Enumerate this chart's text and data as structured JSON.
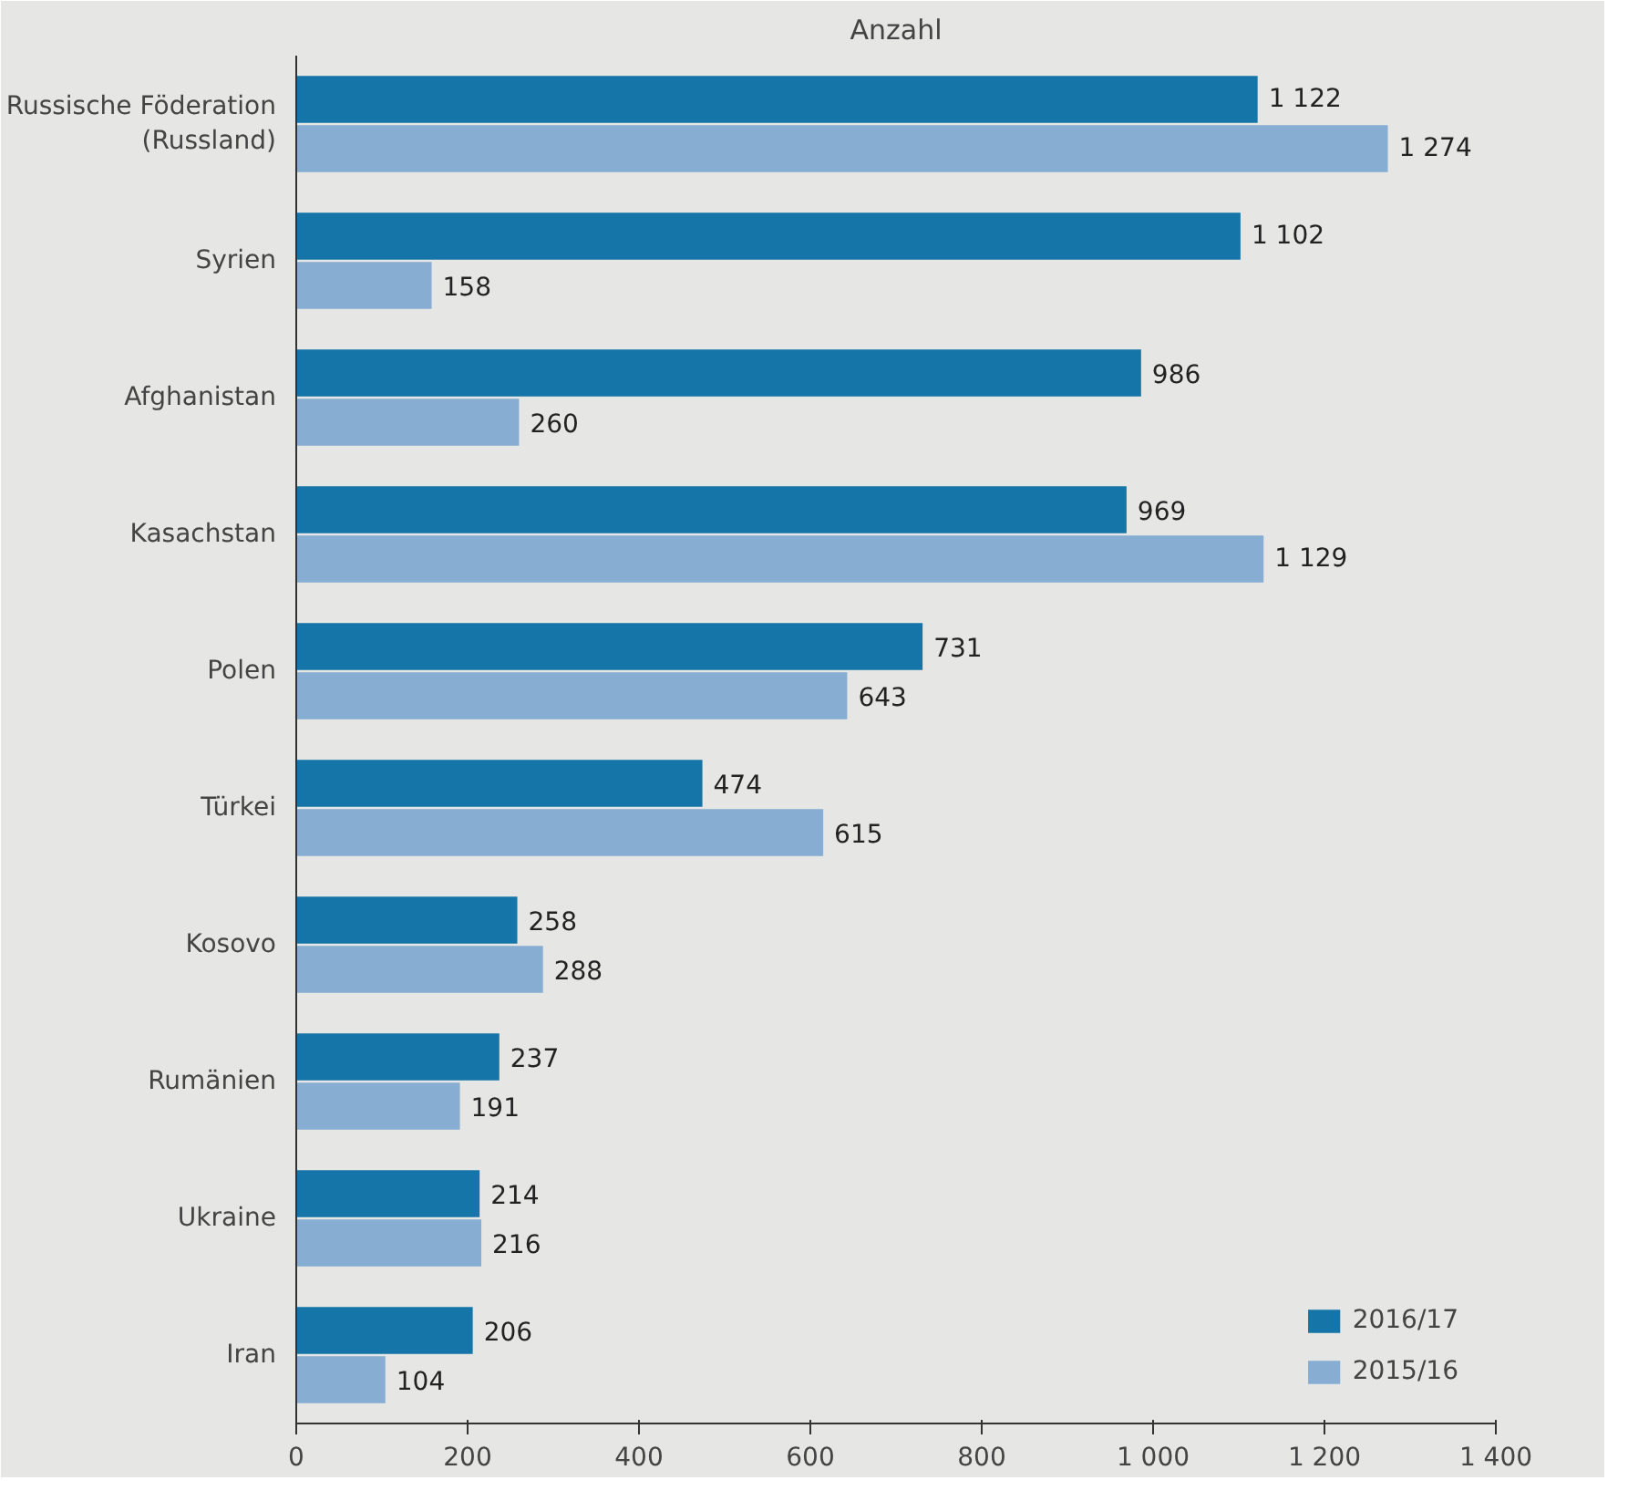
{
  "chart_data": {
    "type": "bar",
    "orientation": "horizontal",
    "title": "Anzahl",
    "categories": [
      "Russische Föderation\n(Russland)",
      "Syrien",
      "Afghanistan",
      "Kasachstan",
      "Polen",
      "Türkei",
      "Kosovo",
      "Rumänien",
      "Ukraine",
      "Iran"
    ],
    "series": [
      {
        "name": "2016/17",
        "color": "#1675a8",
        "values": [
          1122,
          1102,
          986,
          969,
          731,
          474,
          258,
          237,
          214,
          206
        ],
        "value_labels": [
          "1 122",
          "1 102",
          "986",
          "969",
          "731",
          "474",
          "258",
          "237",
          "214",
          "206"
        ]
      },
      {
        "name": "2015/16",
        "color": "#87aed2",
        "values": [
          1274,
          158,
          260,
          1129,
          643,
          615,
          288,
          191,
          216,
          104
        ],
        "value_labels": [
          "1 274",
          "158",
          "260",
          "1 129",
          "643",
          "615",
          "288",
          "191",
          "216",
          "104"
        ]
      }
    ],
    "xlim": [
      0,
      1400
    ],
    "xticks": [
      0,
      200,
      400,
      600,
      800,
      {
        "value": 1000,
        "label": "1 000"
      },
      {
        "value": 1200,
        "label": "1 200"
      },
      {
        "value": 1400,
        "label": "1 400"
      }
    ],
    "legend": "bottom right"
  }
}
